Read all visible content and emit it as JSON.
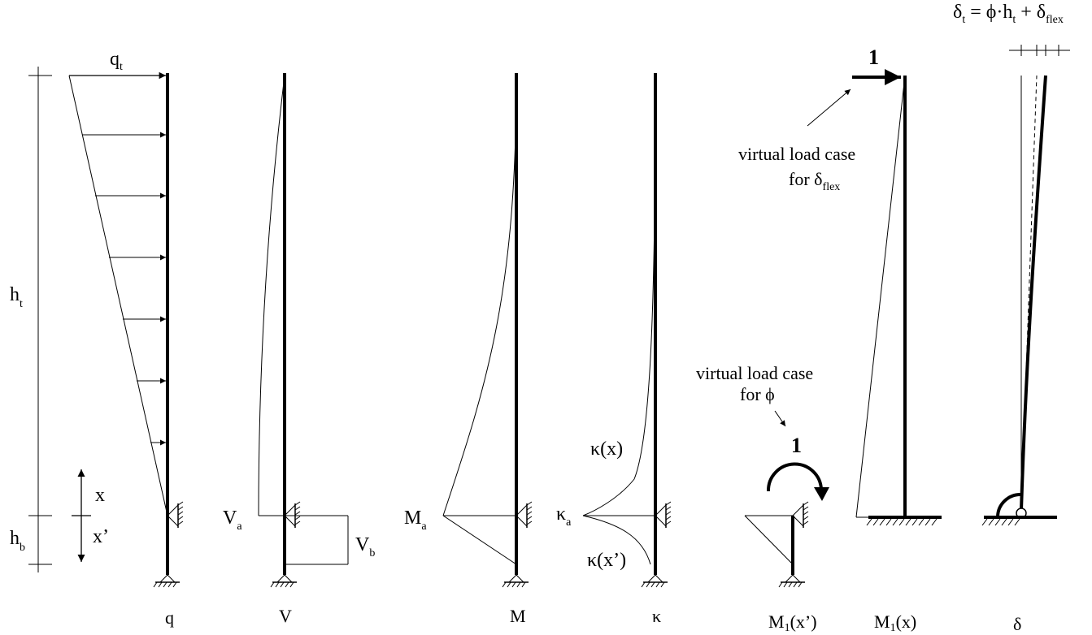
{
  "labels": {
    "q_top": "q",
    "q_top_sub": "t",
    "h_t": "h",
    "h_t_sub": "t",
    "h_b": "h",
    "h_b_sub": "b",
    "x": "x",
    "x_prime": "x’",
    "V_a": "V",
    "V_a_sub": "a",
    "V_b": "V",
    "V_b_sub": "b",
    "M_a": "M",
    "M_a_sub": "a",
    "kappa_x": "κ(x)",
    "kappa_a": "κ",
    "kappa_a_sub": "a",
    "kappa_xp": "κ(x’)",
    "unit_moment": "1",
    "unit_force": "1"
  },
  "captions": {
    "q": "q",
    "V": "V",
    "M": "M",
    "kappa": "κ",
    "M1_xp": "M",
    "M1_xp_sub": "1",
    "M1_xp_arg": "(x’)",
    "M1_x": "M",
    "M1_x_sub": "1",
    "M1_x_arg": "(x)",
    "delta": "δ"
  },
  "notes": {
    "phi_case_line1": "virtual load case",
    "phi_case_line2": "for ϕ",
    "flex_case_line1": "virtual load case",
    "flex_case_line2_main": "for δ",
    "flex_case_line2_sub": "flex"
  },
  "formula": {
    "d": "δ",
    "t": "t",
    "eq": " = ϕ·h",
    "ht": "t",
    "plus": " + δ",
    "flex": "flex"
  },
  "colors": {
    "stroke": "#000000",
    "background": "#ffffff"
  }
}
